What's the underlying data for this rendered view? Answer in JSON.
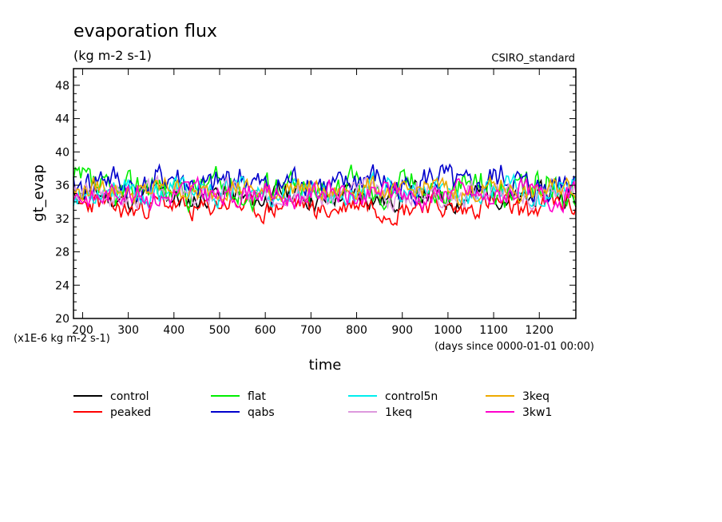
{
  "chart_data": {
    "type": "line",
    "title": "evaporation flux",
    "units": "(kg m-2 s-1)",
    "dataset": "CSIRO_standard",
    "xlabel": "time",
    "x_units": "(days since 0000-01-01 00:00)",
    "ylabel": "gt_evap",
    "y_scale_note": "(x1E-6 kg m-2 s-1)",
    "xlim": [
      180,
      1280
    ],
    "ylim": [
      20,
      50
    ],
    "x_ticks": [
      200,
      300,
      400,
      500,
      600,
      700,
      800,
      900,
      1000,
      1100,
      1200
    ],
    "y_ticks": [
      20,
      24,
      28,
      32,
      36,
      40,
      44,
      48
    ],
    "series": [
      {
        "name": "control",
        "color": "#000000",
        "mean": 34.6,
        "amplitude": 1.3,
        "seed": 11
      },
      {
        "name": "peaked",
        "color": "#ff0000",
        "mean": 33.4,
        "amplitude": 1.3,
        "seed": 23
      },
      {
        "name": "flat",
        "color": "#00ee00",
        "mean": 35.6,
        "amplitude": 1.9,
        "seed": 37
      },
      {
        "name": "qabs",
        "color": "#0000cc",
        "mean": 36.2,
        "amplitude": 1.8,
        "seed": 41
      },
      {
        "name": "control5n",
        "color": "#00eeee",
        "mean": 35.2,
        "amplitude": 1.4,
        "seed": 53
      },
      {
        "name": "1keq",
        "color": "#dd99dd",
        "mean": 35.0,
        "amplitude": 1.3,
        "seed": 67
      },
      {
        "name": "3keq",
        "color": "#eeaa00",
        "mean": 35.4,
        "amplitude": 1.2,
        "seed": 79
      },
      {
        "name": "3kw1",
        "color": "#ff00cc",
        "mean": 34.9,
        "amplitude": 1.3,
        "seed": 83
      }
    ]
  }
}
